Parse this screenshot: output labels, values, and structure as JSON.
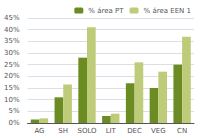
{
  "chart_data": {
    "type": "bar",
    "categories": [
      "AG",
      "SH",
      "SOLO",
      "LIT",
      "DEC",
      "VEG",
      "CN"
    ],
    "series": [
      {
        "name": "% área PT",
        "color": "#6B8C23",
        "values": [
          1.5,
          11,
          28,
          3,
          17,
          15,
          25
        ]
      },
      {
        "name": "% área EEN 1",
        "color": "#BECC7A",
        "values": [
          2,
          16.5,
          41,
          4,
          26,
          22,
          37
        ]
      }
    ],
    "ylim": [
      0,
      45
    ],
    "yticks": [
      {
        "value": 0,
        "label": "0%"
      },
      {
        "value": 5,
        "label": "5%"
      },
      {
        "value": 10,
        "label": "10%"
      },
      {
        "value": 15,
        "label": "15%"
      },
      {
        "value": 20,
        "label": "20%"
      },
      {
        "value": 25,
        "label": "25%"
      },
      {
        "value": 30,
        "label": "30%"
      },
      {
        "value": 35,
        "label": "35%"
      },
      {
        "value": 40,
        "label": "40%"
      },
      {
        "value": 45,
        "label": "45%"
      }
    ],
    "grid": true,
    "legend": "upper right"
  }
}
